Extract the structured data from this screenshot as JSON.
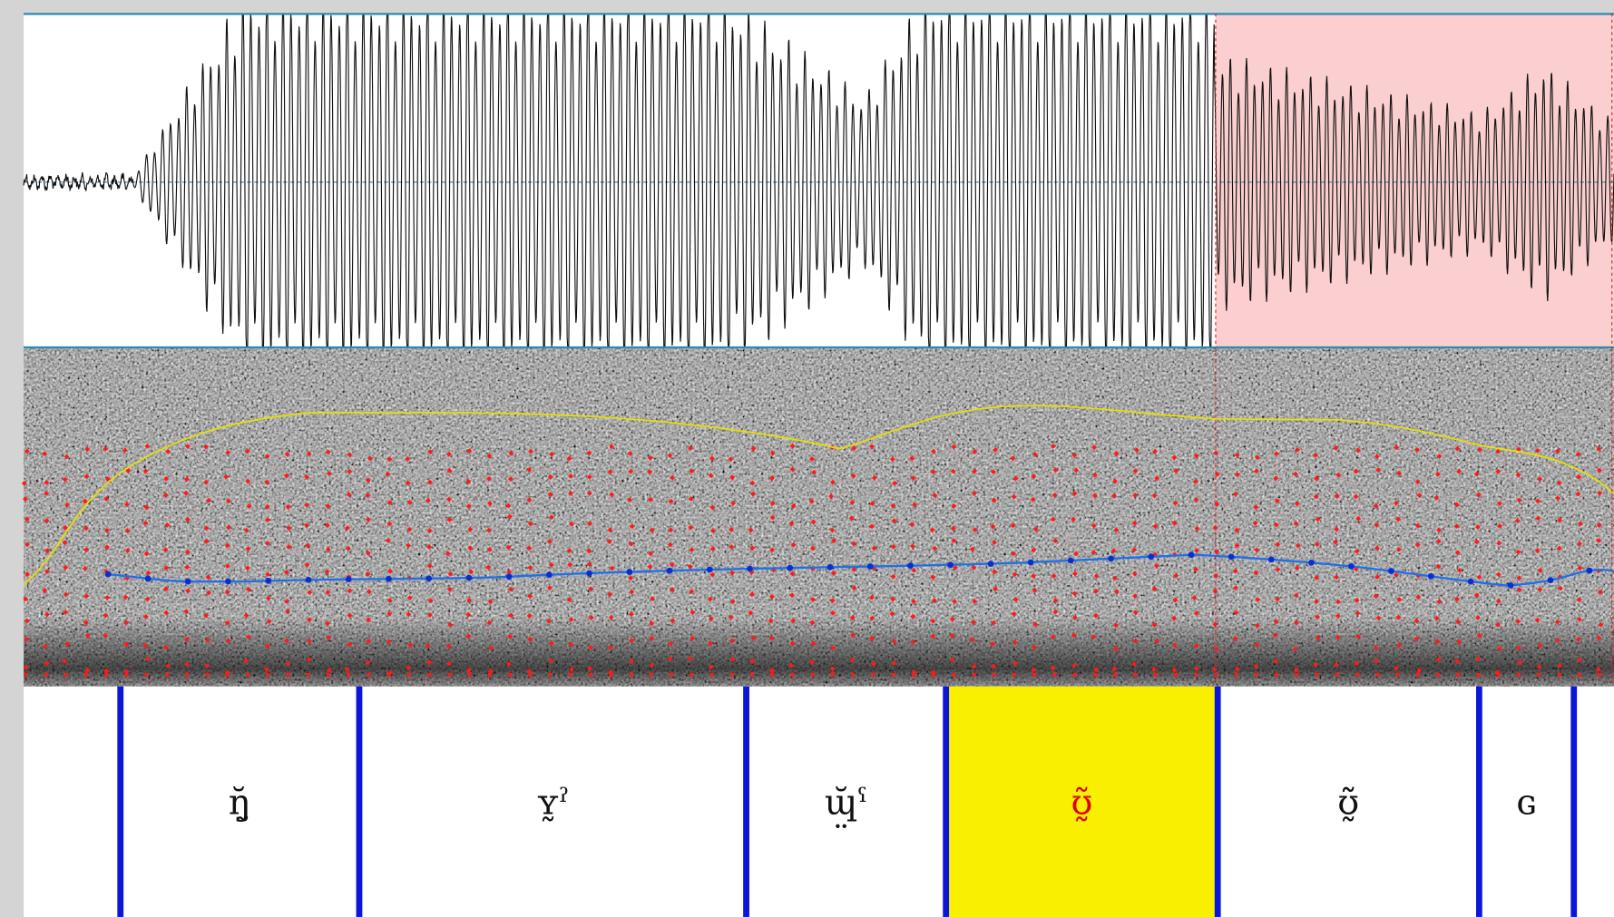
{
  "tier": {
    "intervals": [
      {
        "label": "ŋ̰̆"
      },
      {
        "label": "ʏ̰ˀ"
      },
      {
        "label": "ɰ̤̆ˁ"
      },
      {
        "label": "ʊ̰̃",
        "selected": true
      },
      {
        "label": "ʊ̰̃̃"
      },
      {
        "label": "ɢ"
      }
    ]
  }
}
